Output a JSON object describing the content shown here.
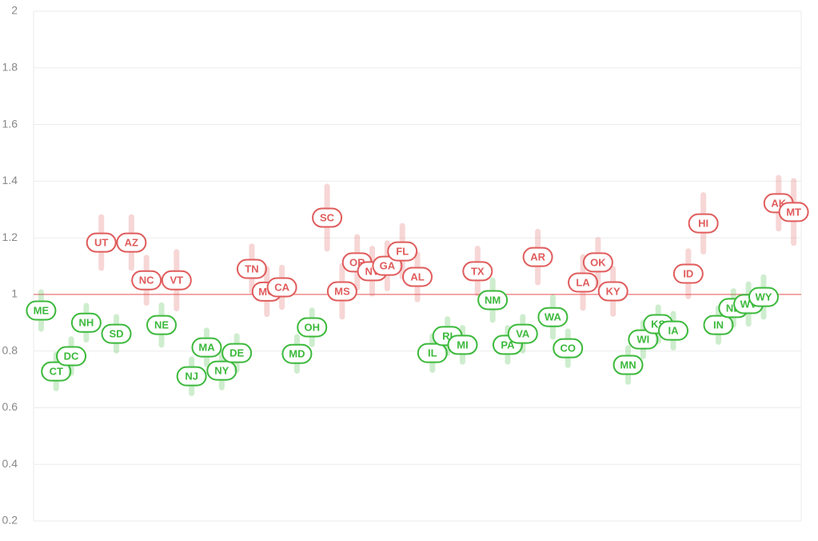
{
  "chart_data": {
    "type": "scatter",
    "categories": [
      "ME",
      "CT",
      "DC",
      "NH",
      "UT",
      "SD",
      "AZ",
      "NC",
      "NE",
      "VT",
      "NJ",
      "MA",
      "NY",
      "DE",
      "TN",
      "MO",
      "CA",
      "MD",
      "OH",
      "SC",
      "MS",
      "OR",
      "NV",
      "GA",
      "FL",
      "AL",
      "IL",
      "RI",
      "MI",
      "TX",
      "NM",
      "PA",
      "VA",
      "AR",
      "WA",
      "CO",
      "LA",
      "OK",
      "KY",
      "MN",
      "WI",
      "KS",
      "IA",
      "ID",
      "HI",
      "IN",
      "ND",
      "WV",
      "WY",
      "AK",
      "MT"
    ],
    "values": [
      0.943,
      0.728,
      0.782,
      0.9,
      1.183,
      0.861,
      1.183,
      1.05,
      0.892,
      1.05,
      0.711,
      0.813,
      0.731,
      0.793,
      1.09,
      1.01,
      1.025,
      0.79,
      0.884,
      1.271,
      1.011,
      1.113,
      1.082,
      1.101,
      1.152,
      1.062,
      0.793,
      0.853,
      0.822,
      1.082,
      0.98,
      0.822,
      0.861,
      1.132,
      0.92,
      0.81,
      1.042,
      1.113,
      1.011,
      0.751,
      0.841,
      0.895,
      0.872,
      1.073,
      1.251,
      0.892,
      0.952,
      0.966,
      0.991,
      1.322,
      1.291
    ],
    "errors": [
      0.065,
      0.06,
      0.06,
      0.06,
      0.09,
      0.06,
      0.09,
      0.08,
      0.07,
      0.1,
      0.06,
      0.06,
      0.06,
      0.06,
      0.08,
      0.08,
      0.07,
      0.06,
      0.06,
      0.11,
      0.09,
      0.09,
      0.08,
      0.08,
      0.09,
      0.08,
      0.06,
      0.06,
      0.06,
      0.08,
      0.07,
      0.06,
      0.06,
      0.09,
      0.07,
      0.06,
      0.09,
      0.08,
      0.08,
      0.06,
      0.06,
      0.06,
      0.06,
      0.08,
      0.1,
      0.06,
      0.06,
      0.07,
      0.07,
      0.09,
      0.11
    ],
    "reference_line": 1,
    "above_color": "#e05c5c",
    "below_color": "#3cb93c",
    "reference_color": "#f08a8a",
    "ylim": [
      0.2,
      2
    ],
    "yticks": [
      0.2,
      0.4,
      0.6,
      0.8,
      1,
      1.2,
      1.4,
      1.6,
      1.8,
      2
    ],
    "grid": true
  }
}
